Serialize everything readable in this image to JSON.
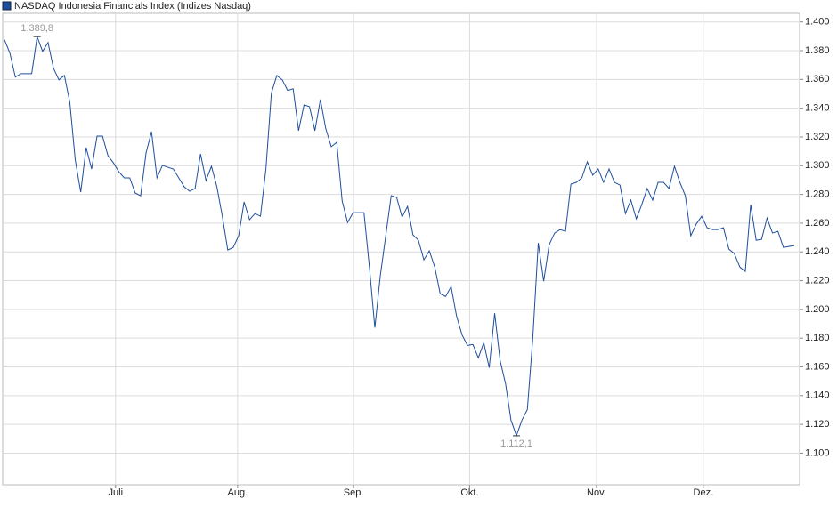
{
  "chart_data": {
    "type": "line",
    "title": "NASDAQ Indonesia Financials Index  (Indizes Nasdaq)",
    "series": [
      {
        "name": "NASDAQ Indonesia Financials Index",
        "color": "#1f4e9c",
        "values": [
          1387.6,
          1378.3,
          1361.6,
          1364,
          1364,
          1364,
          1389.8,
          1379.5,
          1385.7,
          1367.8,
          1359.7,
          1362.8,
          1344.2,
          1303.9,
          1281.6,
          1312.6,
          1297.7,
          1320.6,
          1320.6,
          1307,
          1302,
          1295.8,
          1291.5,
          1291.5,
          1281,
          1279.1,
          1308.9,
          1323.7,
          1291.5,
          1300.2,
          1298.9,
          1297.7,
          1291.5,
          1285.3,
          1282.2,
          1284.1,
          1308.2,
          1289.6,
          1299.6,
          1285.3,
          1264.8,
          1241.3,
          1243.1,
          1251.2,
          1274.8,
          1262.4,
          1266.7,
          1264.8,
          1297.7,
          1350.4,
          1362.8,
          1359.7,
          1352.3,
          1353.5,
          1324.4,
          1342.3,
          1341.1,
          1324.4,
          1346.1,
          1325.6,
          1313.2,
          1316.3,
          1275.4,
          1260.5,
          1267.3,
          1267.3,
          1267.3,
          1229.5,
          1187.3,
          1223.3,
          1251.2,
          1279.1,
          1277.9,
          1264.2,
          1271.7,
          1251.8,
          1248.1,
          1234.5,
          1240.7,
          1229.5,
          1210.9,
          1209,
          1215.9,
          1195.4,
          1182.4,
          1174.9,
          1175.6,
          1166.3,
          1176.8,
          1159.4,
          1197.3,
          1164.4,
          1148.3,
          1122.9,
          1112.1,
          1122.9,
          1130.3,
          1180,
          1246.2,
          1219.6,
          1245,
          1253.1,
          1255.5,
          1254.3,
          1287.2,
          1288.4,
          1291.5,
          1302.7,
          1293.4,
          1297.7,
          1288.4,
          1297.7,
          1288.4,
          1286.5,
          1266.7,
          1276,
          1263,
          1272.9,
          1284.1,
          1276,
          1288.4,
          1288.4,
          1284.1,
          1299.6,
          1288.4,
          1279.1,
          1251.2,
          1259.3,
          1264.8,
          1256.8,
          1255.5,
          1255.5,
          1256.8,
          1241.9,
          1238.8,
          1229.5,
          1226.4,
          1272.9,
          1248.1,
          1248.7,
          1263.6,
          1253.1,
          1254.3,
          1243.1,
          1243.8,
          1244.4
        ]
      }
    ],
    "annotations": [
      "1.389,8",
      "1.112,1"
    ],
    "xlim": [
      0,
      145
    ],
    "xticks": [
      {
        "value": 20.4,
        "label": "Juli"
      },
      {
        "value": 42.8,
        "label": "Aug."
      },
      {
        "value": 64.1,
        "label": "Sep."
      },
      {
        "value": 85.4,
        "label": "Okt."
      },
      {
        "value": 108.7,
        "label": "Nov."
      },
      {
        "value": 128.3,
        "label": "Dez."
      }
    ],
    "ylim": [
      1078,
      1406
    ],
    "yticks": [
      {
        "value": 1100,
        "label": "1.100"
      },
      {
        "value": 1120,
        "label": "1.120"
      },
      {
        "value": 1140,
        "label": "1.140"
      },
      {
        "value": 1160,
        "label": "1.160"
      },
      {
        "value": 1180,
        "label": "1.180"
      },
      {
        "value": 1200,
        "label": "1.200"
      },
      {
        "value": 1220,
        "label": "1.220"
      },
      {
        "value": 1240,
        "label": "1.240"
      },
      {
        "value": 1260,
        "label": "1.260"
      },
      {
        "value": 1280,
        "label": "1.280"
      },
      {
        "value": 1300,
        "label": "1.300"
      },
      {
        "value": 1320,
        "label": "1.320"
      },
      {
        "value": 1340,
        "label": "1.340"
      },
      {
        "value": 1360,
        "label": "1.360"
      },
      {
        "value": 1380,
        "label": "1.380"
      },
      {
        "value": 1400,
        "label": "1.400"
      }
    ],
    "grid": true
  }
}
